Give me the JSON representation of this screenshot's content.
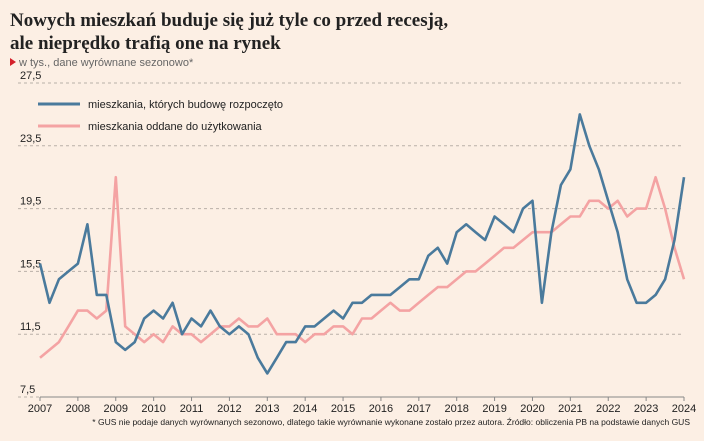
{
  "chart_data": {
    "type": "line",
    "title": [
      "Nowych mieszkań buduje się już tyle co przed recesją,",
      "ale nieprędko trafią one na rynek"
    ],
    "subtitle": "w tys., dane wyrównane sezonowo*",
    "footnote": "* GUS nie podaje danych wyrównanych sezonowo, dlatego takie wyrównanie wykonane zostało przez autora. Źródło: obliczenia PB na podstawie danych GUS",
    "x": [
      2007,
      2007.25,
      2007.5,
      2007.75,
      2008,
      2008.25,
      2008.5,
      2008.75,
      2009,
      2009.25,
      2009.5,
      2009.75,
      2010,
      2010.25,
      2010.5,
      2010.75,
      2011,
      2011.25,
      2011.5,
      2011.75,
      2012,
      2012.25,
      2012.5,
      2012.75,
      2013,
      2013.25,
      2013.5,
      2013.75,
      2014,
      2014.25,
      2014.5,
      2014.75,
      2015,
      2015.25,
      2015.5,
      2015.75,
      2016,
      2016.25,
      2016.5,
      2016.75,
      2017,
      2017.25,
      2017.5,
      2017.75,
      2018,
      2018.25,
      2018.5,
      2018.75,
      2019,
      2019.25,
      2019.5,
      2019.75,
      2020,
      2020.25,
      2020.5,
      2020.75,
      2021,
      2021.25,
      2021.5,
      2021.75,
      2022,
      2022.25,
      2022.5,
      2022.75,
      2023,
      2023.25,
      2023.5,
      2023.75,
      2024
    ],
    "series": [
      {
        "name": "mieszkania, których budowę rozpoczęto",
        "color": "#4a7a9c",
        "values": [
          16,
          13.5,
          15,
          15.5,
          16,
          18.5,
          14,
          14,
          11,
          10.5,
          11,
          12.5,
          13,
          12.5,
          13.5,
          11.5,
          12.5,
          12,
          13,
          12,
          11.5,
          12,
          11.5,
          10,
          9,
          10,
          11,
          11,
          12,
          12,
          12.5,
          13,
          12.5,
          13.5,
          13.5,
          14,
          14,
          14,
          14.5,
          15,
          15,
          16.5,
          17,
          16,
          18,
          18.5,
          18,
          17.5,
          19,
          18.5,
          18,
          19.5,
          20,
          13.5,
          18,
          21,
          22,
          25.5,
          23.5,
          22,
          20,
          18,
          15,
          13.5,
          13.5,
          14,
          15,
          17.5,
          21.5
        ]
      },
      {
        "name": "mieszkania oddane do użytkowania",
        "color": "#f4a3a3",
        "values": [
          10,
          10.5,
          11,
          12,
          13,
          13,
          12.5,
          13,
          21.5,
          12,
          11.5,
          11,
          11.5,
          11,
          12,
          11.5,
          11.5,
          11,
          11.5,
          12,
          12,
          12.5,
          12,
          12,
          12.5,
          11.5,
          11.5,
          11.5,
          11,
          11.5,
          11.5,
          12,
          12,
          11.5,
          12.5,
          12.5,
          13,
          13.5,
          13,
          13,
          13.5,
          14,
          14.5,
          14.5,
          15,
          15.5,
          15.5,
          16,
          16.5,
          17,
          17,
          17.5,
          18,
          18,
          18,
          18.5,
          19,
          19,
          20,
          20,
          19.5,
          20,
          19,
          19.5,
          19.5,
          21.5,
          19.5,
          17,
          15
        ]
      }
    ],
    "xlim": [
      2007,
      2024
    ],
    "xticks": [
      2007,
      2008,
      2009,
      2010,
      2011,
      2012,
      2013,
      2014,
      2015,
      2016,
      2017,
      2018,
      2019,
      2020,
      2021,
      2022,
      2023,
      2024
    ],
    "ylim": [
      7.5,
      27.5
    ],
    "yticks": [
      {
        "value": 7.5,
        "label": "7,5"
      },
      {
        "value": 11.5,
        "label": "11,5"
      },
      {
        "value": 15.5,
        "label": "15,5"
      },
      {
        "value": 19.5,
        "label": "19,5"
      },
      {
        "value": 23.5,
        "label": "23,5"
      },
      {
        "value": 27.5,
        "label": "27,5"
      }
    ],
    "grid": true,
    "legend": "top-left"
  }
}
